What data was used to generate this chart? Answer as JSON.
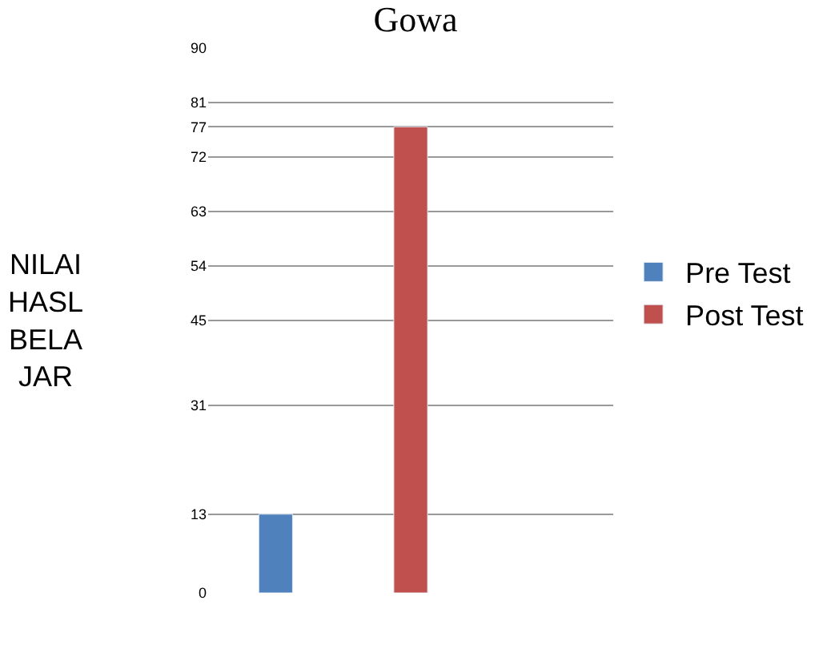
{
  "chart_data": {
    "type": "bar",
    "title": "Gowa",
    "ylabel": "NILAI HASL BELAJAR",
    "categories": [
      null,
      null,
      null
    ],
    "series": [
      {
        "name": "Pre Test",
        "color": "#4f81bd",
        "values": [
          13,
          null,
          null
        ]
      },
      {
        "name": "Post Test",
        "color": "#c0504d",
        "values": [
          null,
          77,
          null
        ]
      }
    ],
    "ylim": [
      0,
      90
    ],
    "yticks": [
      0,
      13,
      31,
      45,
      54,
      63,
      72,
      77,
      81,
      90
    ],
    "grid": "y",
    "legend": "right"
  }
}
